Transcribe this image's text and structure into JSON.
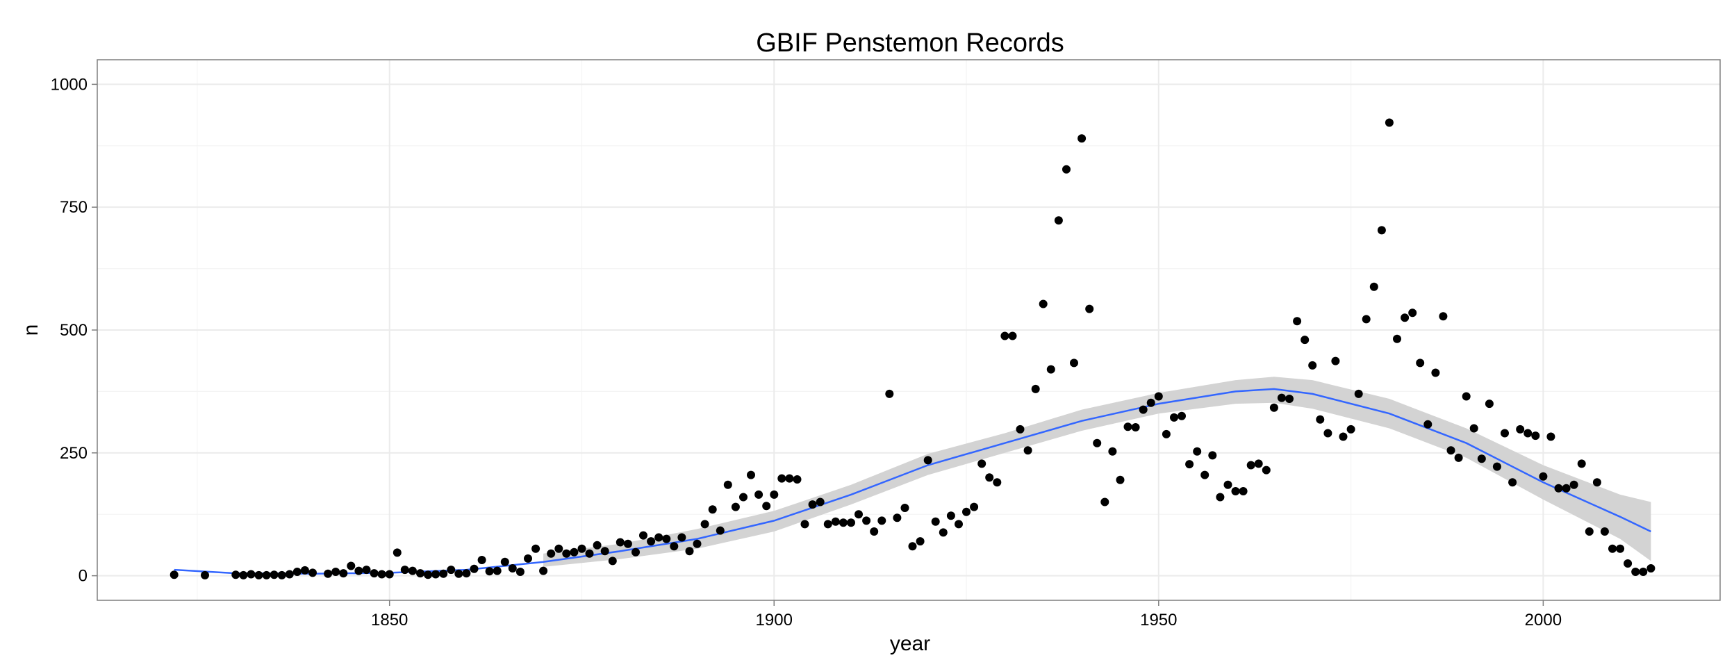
{
  "chart_data": {
    "type": "scatter",
    "title": "GBIF Penstemon Records",
    "xlabel": "year",
    "ylabel": "n",
    "xlim": [
      1812,
      2023
    ],
    "ylim": [
      -50,
      1050
    ],
    "x_ticks": [
      1850,
      1900,
      1950,
      2000
    ],
    "y_ticks": [
      0,
      250,
      500,
      750,
      1000
    ],
    "grid": true,
    "legend": "none",
    "colors": {
      "points": "#000000",
      "smooth_line": "#3366FF",
      "ribbon": "#d3d3d3",
      "panel_border": "#7f7f7f",
      "grid": "#ebebeb"
    },
    "points": [
      [
        1822,
        2
      ],
      [
        1826,
        1
      ],
      [
        1830,
        2
      ],
      [
        1831,
        1
      ],
      [
        1832,
        3
      ],
      [
        1833,
        1
      ],
      [
        1834,
        1
      ],
      [
        1835,
        2
      ],
      [
        1836,
        1
      ],
      [
        1837,
        3
      ],
      [
        1838,
        8
      ],
      [
        1839,
        11
      ],
      [
        1840,
        6
      ],
      [
        1842,
        4
      ],
      [
        1843,
        8
      ],
      [
        1844,
        5
      ],
      [
        1845,
        20
      ],
      [
        1846,
        10
      ],
      [
        1847,
        12
      ],
      [
        1848,
        5
      ],
      [
        1849,
        3
      ],
      [
        1850,
        3
      ],
      [
        1851,
        47
      ],
      [
        1852,
        12
      ],
      [
        1853,
        10
      ],
      [
        1854,
        5
      ],
      [
        1855,
        2
      ],
      [
        1856,
        3
      ],
      [
        1857,
        4
      ],
      [
        1858,
        12
      ],
      [
        1859,
        4
      ],
      [
        1860,
        5
      ],
      [
        1861,
        14
      ],
      [
        1862,
        32
      ],
      [
        1863,
        9
      ],
      [
        1864,
        10
      ],
      [
        1865,
        28
      ],
      [
        1866,
        15
      ],
      [
        1867,
        8
      ],
      [
        1868,
        35
      ],
      [
        1869,
        55
      ],
      [
        1870,
        10
      ],
      [
        1871,
        45
      ],
      [
        1872,
        55
      ],
      [
        1873,
        45
      ],
      [
        1874,
        48
      ],
      [
        1875,
        55
      ],
      [
        1876,
        45
      ],
      [
        1877,
        62
      ],
      [
        1878,
        50
      ],
      [
        1879,
        30
      ],
      [
        1880,
        68
      ],
      [
        1881,
        65
      ],
      [
        1882,
        48
      ],
      [
        1883,
        82
      ],
      [
        1884,
        70
      ],
      [
        1885,
        78
      ],
      [
        1886,
        75
      ],
      [
        1887,
        60
      ],
      [
        1888,
        78
      ],
      [
        1889,
        50
      ],
      [
        1890,
        65
      ],
      [
        1891,
        105
      ],
      [
        1892,
        135
      ],
      [
        1893,
        92
      ],
      [
        1894,
        185
      ],
      [
        1895,
        140
      ],
      [
        1896,
        160
      ],
      [
        1897,
        205
      ],
      [
        1898,
        165
      ],
      [
        1899,
        142
      ],
      [
        1900,
        165
      ],
      [
        1901,
        198
      ],
      [
        1902,
        198
      ],
      [
        1903,
        196
      ],
      [
        1904,
        105
      ],
      [
        1905,
        145
      ],
      [
        1906,
        150
      ],
      [
        1907,
        105
      ],
      [
        1908,
        110
      ],
      [
        1909,
        108
      ],
      [
        1910,
        108
      ],
      [
        1911,
        125
      ],
      [
        1912,
        112
      ],
      [
        1913,
        90
      ],
      [
        1914,
        112
      ],
      [
        1915,
        370
      ],
      [
        1916,
        118
      ],
      [
        1917,
        138
      ],
      [
        1918,
        60
      ],
      [
        1919,
        70
      ],
      [
        1920,
        235
      ],
      [
        1921,
        110
      ],
      [
        1922,
        88
      ],
      [
        1923,
        122
      ],
      [
        1924,
        105
      ],
      [
        1925,
        130
      ],
      [
        1926,
        140
      ],
      [
        1927,
        228
      ],
      [
        1928,
        200
      ],
      [
        1929,
        190
      ],
      [
        1930,
        488
      ],
      [
        1931,
        488
      ],
      [
        1932,
        298
      ],
      [
        1933,
        255
      ],
      [
        1934,
        380
      ],
      [
        1935,
        553
      ],
      [
        1936,
        420
      ],
      [
        1937,
        723
      ],
      [
        1938,
        827
      ],
      [
        1939,
        433
      ],
      [
        1940,
        890
      ],
      [
        1941,
        543
      ],
      [
        1942,
        270
      ],
      [
        1943,
        150
      ],
      [
        1944,
        253
      ],
      [
        1945,
        195
      ],
      [
        1946,
        303
      ],
      [
        1947,
        302
      ],
      [
        1948,
        338
      ],
      [
        1949,
        352
      ],
      [
        1950,
        365
      ],
      [
        1951,
        288
      ],
      [
        1952,
        322
      ],
      [
        1953,
        325
      ],
      [
        1954,
        227
      ],
      [
        1955,
        253
      ],
      [
        1956,
        205
      ],
      [
        1957,
        245
      ],
      [
        1958,
        160
      ],
      [
        1959,
        185
      ],
      [
        1960,
        172
      ],
      [
        1961,
        172
      ],
      [
        1962,
        225
      ],
      [
        1963,
        228
      ],
      [
        1964,
        215
      ],
      [
        1965,
        342
      ],
      [
        1966,
        362
      ],
      [
        1967,
        360
      ],
      [
        1968,
        518
      ],
      [
        1969,
        480
      ],
      [
        1970,
        428
      ],
      [
        1971,
        318
      ],
      [
        1972,
        290
      ],
      [
        1973,
        437
      ],
      [
        1974,
        283
      ],
      [
        1975,
        298
      ],
      [
        1976,
        370
      ],
      [
        1977,
        522
      ],
      [
        1978,
        588
      ],
      [
        1979,
        703
      ],
      [
        1980,
        922
      ],
      [
        1981,
        482
      ],
      [
        1982,
        525
      ],
      [
        1983,
        535
      ],
      [
        1984,
        433
      ],
      [
        1985,
        308
      ],
      [
        1986,
        413
      ],
      [
        1987,
        528
      ],
      [
        1988,
        255
      ],
      [
        1989,
        240
      ],
      [
        1990,
        365
      ],
      [
        1991,
        300
      ],
      [
        1992,
        238
      ],
      [
        1993,
        350
      ],
      [
        1994,
        222
      ],
      [
        1995,
        290
      ],
      [
        1996,
        190
      ],
      [
        1997,
        298
      ],
      [
        1998,
        290
      ],
      [
        1999,
        285
      ],
      [
        2000,
        202
      ],
      [
        2001,
        283
      ],
      [
        2002,
        178
      ],
      [
        2003,
        178
      ],
      [
        2004,
        185
      ],
      [
        2005,
        228
      ],
      [
        2006,
        90
      ],
      [
        2007,
        190
      ],
      [
        2008,
        90
      ],
      [
        2009,
        55
      ],
      [
        2010,
        55
      ],
      [
        2011,
        25
      ],
      [
        2012,
        8
      ],
      [
        2013,
        8
      ],
      [
        2014,
        15
      ]
    ],
    "smooth": {
      "x": [
        1822,
        1830,
        1840,
        1850,
        1860,
        1870,
        1880,
        1890,
        1900,
        1910,
        1920,
        1930,
        1940,
        1950,
        1960,
        1965,
        1970,
        1980,
        1990,
        2000,
        2010,
        2014
      ],
      "y": [
        12,
        5,
        4,
        6,
        12,
        28,
        50,
        75,
        112,
        165,
        225,
        270,
        315,
        350,
        375,
        380,
        370,
        330,
        270,
        190,
        120,
        90
      ],
      "lower": [
        null,
        null,
        null,
        null,
        null,
        18,
        34,
        55,
        90,
        145,
        205,
        250,
        295,
        330,
        350,
        352,
        340,
        300,
        240,
        155,
        75,
        30
      ],
      "upper": [
        null,
        null,
        null,
        null,
        null,
        45,
        65,
        95,
        132,
        185,
        248,
        290,
        338,
        372,
        398,
        405,
        398,
        360,
        300,
        225,
        165,
        150
      ]
    }
  }
}
